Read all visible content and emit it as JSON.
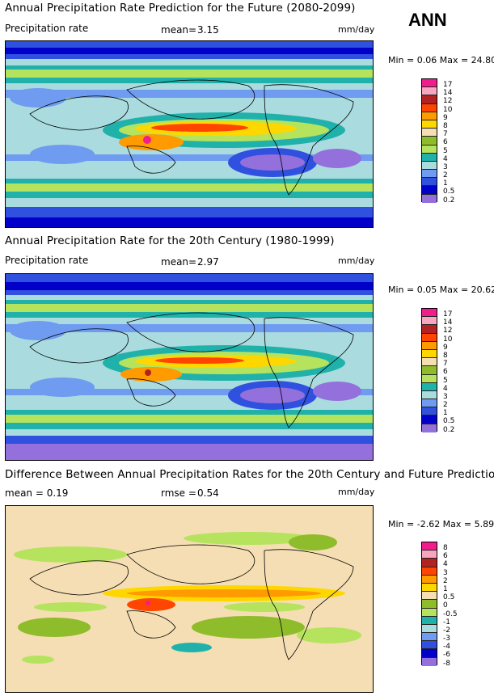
{
  "header": {
    "season": "ANN"
  },
  "panels": [
    {
      "title": "Annual Precipitation Rate Prediction for the Future (2080-2099)",
      "label_left": "Precipitation rate",
      "mean_label": "mean=",
      "mean_value": "3.15",
      "units": "mm/day",
      "minmax": "Min =  0.06 Max = 24.80",
      "legend_levels": [
        "17",
        "14",
        "12",
        "10",
        "9",
        "8",
        "7",
        "6",
        "5",
        "4",
        "3",
        "2",
        "1",
        "0.5",
        "0.2"
      ],
      "legend_colors": [
        "#f01e8c",
        "#f8a6c0",
        "#b22222",
        "#ff4500",
        "#ff9a00",
        "#ffd700",
        "#f5deb3",
        "#8fbc2b",
        "#b5e35e",
        "#20b2aa",
        "#aadbdf",
        "#6f9bf0",
        "#3050e0",
        "#0000c8",
        "#9370db"
      ]
    },
    {
      "title": "Annual Precipitation Rate for the 20th Century (1980-1999)",
      "label_left": "Precipitation rate",
      "mean_label": "mean=",
      "mean_value": "2.97",
      "units": "mm/day",
      "minmax": "Min =  0.05 Max = 20.62",
      "legend_levels": [
        "17",
        "14",
        "12",
        "10",
        "9",
        "8",
        "7",
        "6",
        "5",
        "4",
        "3",
        "2",
        "1",
        "0.5",
        "0.2"
      ],
      "legend_colors": [
        "#f01e8c",
        "#f8a6c0",
        "#b22222",
        "#ff4500",
        "#ff9a00",
        "#ffd700",
        "#f5deb3",
        "#8fbc2b",
        "#b5e35e",
        "#20b2aa",
        "#aadbdf",
        "#6f9bf0",
        "#3050e0",
        "#0000c8",
        "#9370db"
      ]
    },
    {
      "title": "Difference Between Annual Precipitation Rates for the 20th Century and Future Predictions",
      "label_left": "mean =  0.19",
      "mean_label": "rmse =",
      "mean_value": "0.54",
      "units": "mm/day",
      "minmax": "Min = -2.62 Max =  5.89",
      "legend_levels": [
        "8",
        "6",
        "4",
        "3",
        "2",
        "1",
        "0.5",
        "0",
        "-0.5",
        "-1",
        "-2",
        "-3",
        "-4",
        "-6",
        "-8"
      ],
      "legend_colors": [
        "#f01e8c",
        "#f8a6c0",
        "#b22222",
        "#ff4500",
        "#ff9a00",
        "#ffd700",
        "#f5deb3",
        "#8fbc2b",
        "#b5e35e",
        "#20b2aa",
        "#aadbdf",
        "#6f9bf0",
        "#3050e0",
        "#0000c8",
        "#9370db"
      ]
    }
  ]
}
